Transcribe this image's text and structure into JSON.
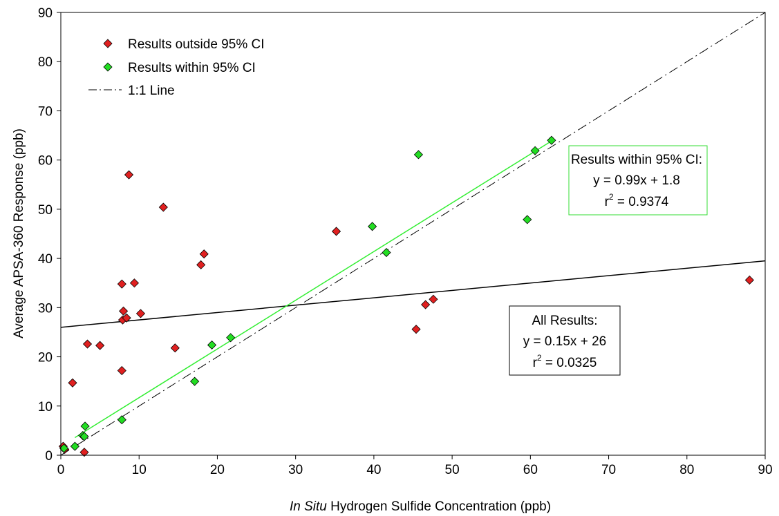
{
  "chart_data": {
    "type": "scatter",
    "title": "",
    "xlabel_italic": "In Situ",
    "xlabel_rest": " Hydrogen Sulfide Concentration (ppb)",
    "ylabel": "Average APSA-360 Response (ppb)",
    "xlim": [
      0,
      90
    ],
    "ylim": [
      0,
      90
    ],
    "xticks": [
      0,
      10,
      20,
      30,
      40,
      50,
      60,
      70,
      80,
      90
    ],
    "yticks": [
      0,
      10,
      20,
      30,
      40,
      50,
      60,
      70,
      80,
      90
    ],
    "grid": false,
    "legend_position": "top-left",
    "series": [
      {
        "name": "Results outside 95% CI",
        "marker": "diamond",
        "color": "#e02020",
        "points": [
          [
            0.3,
            1.8
          ],
          [
            0.5,
            1.2
          ],
          [
            1.5,
            14.7
          ],
          [
            3.0,
            0.6
          ],
          [
            3.4,
            22.6
          ],
          [
            5.0,
            22.3
          ],
          [
            7.8,
            34.8
          ],
          [
            7.8,
            17.2
          ],
          [
            7.9,
            27.5
          ],
          [
            8.0,
            29.3
          ],
          [
            8.4,
            27.9
          ],
          [
            8.7,
            57.0
          ],
          [
            9.4,
            35.0
          ],
          [
            10.2,
            28.8
          ],
          [
            13.1,
            50.4
          ],
          [
            14.6,
            21.8
          ],
          [
            17.9,
            38.7
          ],
          [
            18.3,
            40.9
          ],
          [
            35.2,
            45.5
          ],
          [
            45.4,
            25.6
          ],
          [
            46.6,
            30.6
          ],
          [
            47.6,
            31.7
          ],
          [
            88.0,
            35.6
          ]
        ]
      },
      {
        "name": "Results within 95% CI",
        "marker": "diamond",
        "color": "#22dd22",
        "points": [
          [
            0.4,
            1.4
          ],
          [
            1.8,
            1.8
          ],
          [
            2.8,
            4.0
          ],
          [
            3.0,
            3.8
          ],
          [
            3.1,
            5.9
          ],
          [
            7.8,
            7.2
          ],
          [
            17.1,
            15.0
          ],
          [
            19.3,
            22.4
          ],
          [
            21.7,
            23.9
          ],
          [
            39.8,
            46.5
          ],
          [
            41.6,
            41.2
          ],
          [
            45.7,
            61.1
          ],
          [
            59.6,
            47.9
          ],
          [
            60.6,
            61.9
          ],
          [
            62.7,
            64.0
          ]
        ]
      }
    ],
    "lines": [
      {
        "name": "1:1 Line",
        "style": "dash-dot",
        "color": "#000000",
        "x": [
          0,
          90
        ],
        "y": [
          0,
          90
        ]
      },
      {
        "name": "All Results fit",
        "style": "solid",
        "color": "#000000",
        "x": [
          0,
          90
        ],
        "y": [
          26,
          39.5
        ]
      },
      {
        "name": "Within 95% CI fit",
        "style": "solid",
        "color": "#33ee33",
        "x": [
          1.8,
          62.7
        ],
        "y": [
          3.58,
          63.87
        ]
      }
    ],
    "legend": [
      {
        "label": "Results outside 95% CI",
        "kind": "marker",
        "color": "#e02020"
      },
      {
        "label": "Results within 95% CI",
        "kind": "marker",
        "color": "#22dd22"
      },
      {
        "label": "1:1 Line",
        "kind": "line",
        "color": "#000000"
      }
    ],
    "annotations": [
      {
        "id": "within-ci-box",
        "border_color": "#33dd33",
        "lines": [
          "Results within 95% CI:",
          "y = 0.99x + 1.8",
          "r",
          "2",
          " = 0.9374"
        ]
      },
      {
        "id": "all-results-box",
        "border_color": "#000000",
        "lines": [
          "All Results:",
          "y = 0.15x + 26",
          "r",
          "2",
          " = 0.0325"
        ]
      }
    ]
  }
}
